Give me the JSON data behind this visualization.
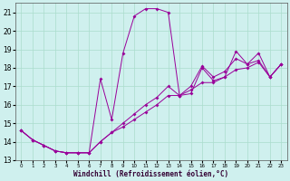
{
  "xlabel": "Windchill (Refroidissement éolien,°C)",
  "xlim": [
    -0.5,
    23.5
  ],
  "ylim": [
    13,
    21.5
  ],
  "yticks": [
    13,
    14,
    15,
    16,
    17,
    18,
    19,
    20,
    21
  ],
  "xticks": [
    0,
    1,
    2,
    3,
    4,
    5,
    6,
    7,
    8,
    9,
    10,
    11,
    12,
    13,
    14,
    15,
    16,
    17,
    18,
    19,
    20,
    21,
    22,
    23
  ],
  "bg_color": "#cff0ee",
  "grid_color": "#aaddcc",
  "line_color": "#990099",
  "line1_x": [
    0,
    1,
    2,
    3,
    4,
    5,
    6,
    7,
    8,
    9,
    10,
    11,
    12,
    13,
    14,
    15,
    16,
    17,
    18,
    19,
    20,
    21,
    22,
    23
  ],
  "line1_y": [
    14.6,
    14.1,
    13.8,
    13.5,
    13.4,
    13.4,
    13.4,
    17.4,
    15.2,
    18.8,
    20.8,
    21.2,
    21.2,
    21.0,
    16.5,
    16.6,
    18.0,
    17.3,
    17.5,
    18.9,
    18.2,
    18.8,
    17.5,
    18.2
  ],
  "line2_x": [
    0,
    1,
    2,
    3,
    4,
    5,
    6,
    7,
    8,
    9,
    10,
    11,
    12,
    13,
    14,
    15,
    16,
    17,
    18,
    19,
    20,
    21,
    22,
    23
  ],
  "line2_y": [
    14.6,
    14.1,
    13.8,
    13.5,
    13.4,
    13.4,
    13.4,
    14.0,
    14.5,
    15.0,
    15.5,
    16.0,
    16.4,
    17.0,
    16.5,
    17.0,
    18.1,
    17.5,
    17.8,
    18.5,
    18.2,
    18.4,
    17.5,
    18.2
  ],
  "line3_x": [
    0,
    1,
    2,
    3,
    4,
    5,
    6,
    7,
    8,
    9,
    10,
    11,
    12,
    13,
    14,
    15,
    16,
    17,
    18,
    19,
    20,
    21,
    22,
    23
  ],
  "line3_y": [
    14.6,
    14.1,
    13.8,
    13.5,
    13.4,
    13.4,
    13.4,
    14.0,
    14.5,
    14.8,
    15.2,
    15.6,
    16.0,
    16.5,
    16.5,
    16.8,
    17.2,
    17.2,
    17.5,
    17.9,
    18.0,
    18.3,
    17.5,
    18.2
  ]
}
